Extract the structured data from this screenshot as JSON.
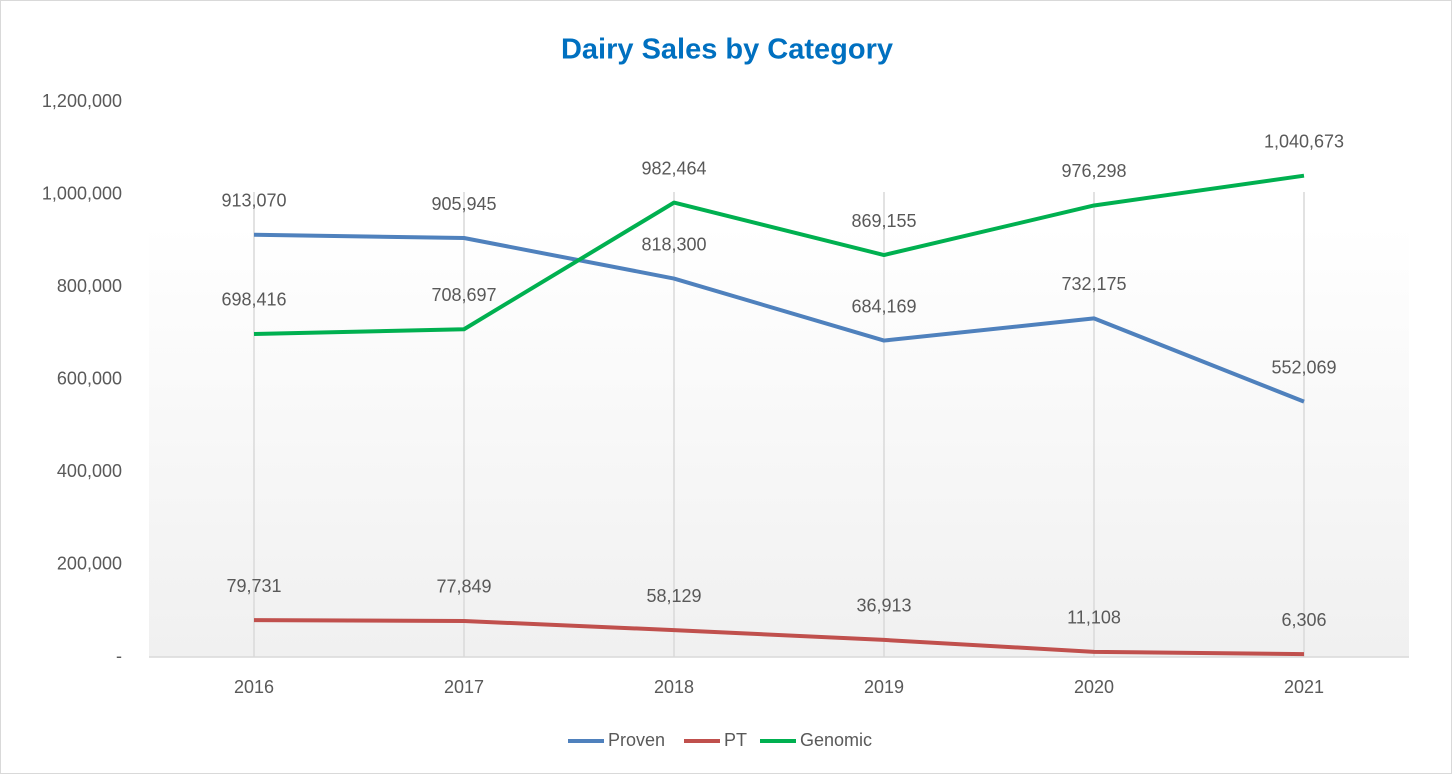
{
  "chart_data": {
    "type": "line",
    "title": "Dairy Sales by Category",
    "categories": [
      "2016",
      "2017",
      "2018",
      "2019",
      "2020",
      "2021"
    ],
    "series": [
      {
        "name": "Proven",
        "color": "#4f81bd",
        "values": [
          913070,
          905945,
          818300,
          684169,
          732175,
          552069
        ],
        "value_labels": [
          "913,070",
          "905,945",
          "818,300",
          "684,169",
          "732,175",
          "552,069"
        ]
      },
      {
        "name": "PT",
        "color": "#c0504d",
        "values": [
          79731,
          77849,
          58129,
          36913,
          11108,
          6306
        ],
        "value_labels": [
          "79,731",
          "77,849",
          "58,129",
          "36,913",
          "11,108",
          "6,306"
        ]
      },
      {
        "name": "Genomic",
        "color": "#00b050",
        "values": [
          698416,
          708697,
          982464,
          869155,
          976298,
          1040673
        ],
        "value_labels": [
          "698,416",
          "708,697",
          "982,464",
          "869,155",
          "976,298",
          "1,040,673"
        ]
      }
    ],
    "ylim": [
      0,
      1200000
    ],
    "yticks": [
      {
        "value": 0,
        "label": "-"
      },
      {
        "value": 200000,
        "label": "200,000"
      },
      {
        "value": 400000,
        "label": "400,000"
      },
      {
        "value": 600000,
        "label": "600,000"
      },
      {
        "value": 800000,
        "label": "800,000"
      },
      {
        "value": 1000000,
        "label": "1,000,000"
      },
      {
        "value": 1200000,
        "label": "1,200,000"
      }
    ],
    "grid": true,
    "legend": "bottom"
  }
}
